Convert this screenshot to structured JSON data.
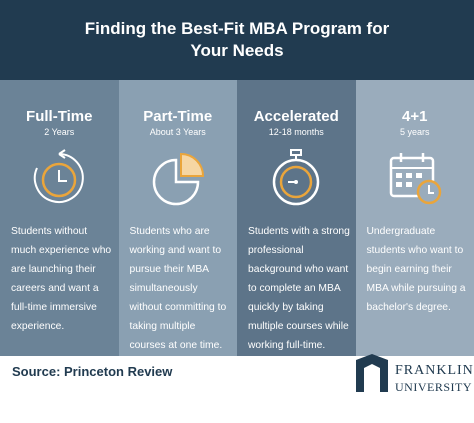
{
  "header": {
    "title": "Finding the Best-Fit MBA Program for Your Needs"
  },
  "columns": [
    {
      "title": "Full-Time",
      "duration": "2 Years",
      "description": "Students without much experience who are launching their careers and want a full-time immersive experience."
    },
    {
      "title": "Part-Time",
      "duration": "About 3 Years",
      "description": "Students who are working and want to pursue their MBA simultaneously without committing to taking multiple courses at one time."
    },
    {
      "title": "Accelerated",
      "duration": "12-18 months",
      "description": "Students with a strong professional background who want to complete an MBA quickly by taking multiple courses while working full-time."
    },
    {
      "title": "4+1",
      "duration": "5 years",
      "description": "Undergraduate students who want to begin earning their MBA while pursuing a bachelor's degree."
    }
  ],
  "footer": {
    "source": "Source: Princeton Review",
    "logo_line1": "FRANKLIN",
    "logo_line2": "UNIVERSITY"
  }
}
